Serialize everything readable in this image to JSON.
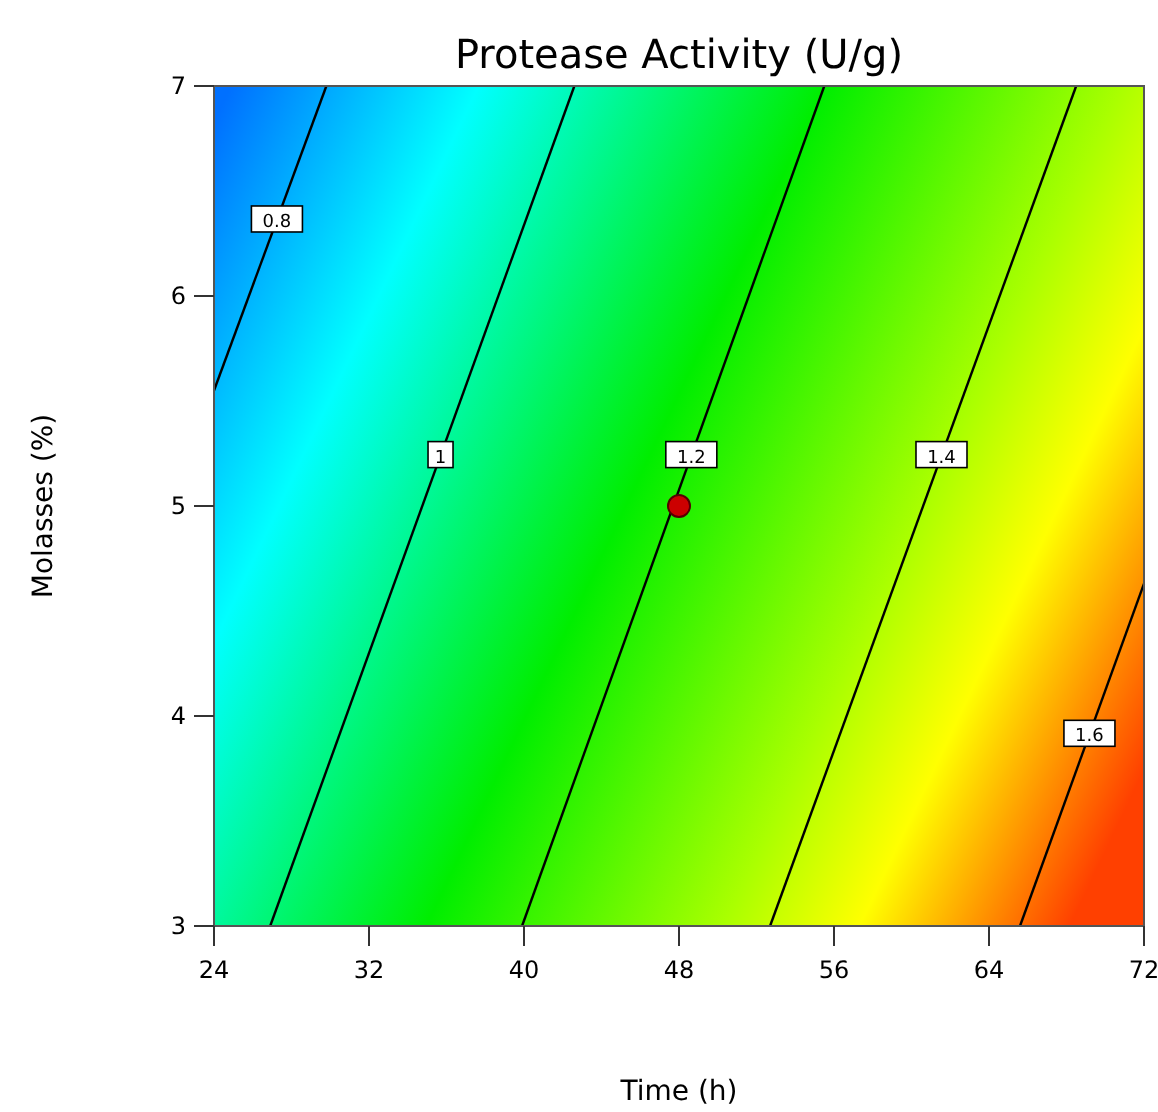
{
  "chart_data": {
    "type": "line",
    "title": "Protease Activity (U/g)",
    "xlabel": "Time (h)",
    "ylabel": "Molasses (%)",
    "xlim": [
      24,
      72
    ],
    "xticks": [
      24,
      32,
      40,
      48,
      56,
      64,
      72
    ],
    "ylim": [
      3,
      7
    ],
    "yticks": [
      3,
      4,
      5,
      6,
      7
    ],
    "series": [
      {
        "name": "0.8",
        "color": "#000000",
        "x": [
          24,
          29.8
        ],
        "values": [
          5.55,
          7
        ]
      },
      {
        "name": "1",
        "color": "#000000",
        "x": [
          26.9,
          42.6
        ],
        "values": [
          3,
          7
        ]
      },
      {
        "name": "1.2",
        "color": "#000000",
        "x": [
          39.9,
          55.5
        ],
        "values": [
          3,
          7
        ]
      },
      {
        "name": "1.4",
        "color": "#000000",
        "x": [
          52.7,
          68.5
        ],
        "values": [
          3,
          7
        ]
      },
      {
        "name": "1.6",
        "color": "#000000",
        "x": [
          65.6,
          72
        ],
        "values": [
          3,
          4.63
        ]
      },
      {
        "type": "scatter",
        "color": "#cc0000",
        "marker": "circle",
        "x": [
          48
        ],
        "values": [
          5
        ]
      }
    ]
  }
}
